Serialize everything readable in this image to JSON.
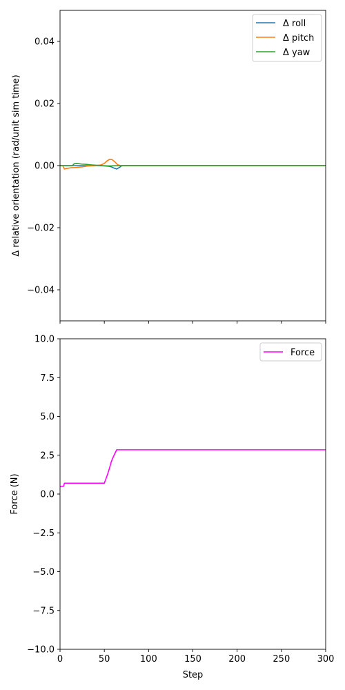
{
  "chart_data": [
    {
      "type": "line",
      "title": "",
      "xlabel": "",
      "ylabel": "Δ relative orientation (rad/unit sim time)",
      "xlim": [
        0,
        300
      ],
      "ylim": [
        -0.05,
        0.05
      ],
      "x_ticks": [
        0,
        50,
        100,
        150,
        200,
        250,
        300
      ],
      "x_tick_labels_visible": false,
      "y_ticks": [
        -0.04,
        -0.02,
        0.0,
        0.02,
        0.04
      ],
      "y_tick_labels": [
        "−0.04",
        "−0.02",
        "0.00",
        "0.02",
        "0.04"
      ],
      "grid": false,
      "legend_position": "top-right",
      "series": [
        {
          "name": "Δ roll",
          "color": "#1f77b4",
          "points": [
            [
              0,
              0
            ],
            [
              45,
              0
            ],
            [
              50,
              -0.0001
            ],
            [
              55,
              -0.0002
            ],
            [
              58,
              -0.0004
            ],
            [
              61,
              -0.0008
            ],
            [
              64,
              -0.0011
            ],
            [
              67,
              -0.0006
            ],
            [
              70,
              0
            ],
            [
              300,
              0
            ]
          ]
        },
        {
          "name": "Δ pitch",
          "color": "#ff7f0e",
          "points": [
            [
              0,
              0
            ],
            [
              3,
              0
            ],
            [
              5,
              -0.0011
            ],
            [
              8,
              -0.0009
            ],
            [
              12,
              -0.0007
            ],
            [
              18,
              -0.0006
            ],
            [
              25,
              -0.0004
            ],
            [
              32,
              -0.0001
            ],
            [
              40,
              0
            ],
            [
              46,
              0.0002
            ],
            [
              50,
              0.0007
            ],
            [
              53,
              0.0015
            ],
            [
              56,
              0.002
            ],
            [
              59,
              0.0019
            ],
            [
              62,
              0.0012
            ],
            [
              65,
              0.0003
            ],
            [
              68,
              0
            ],
            [
              300,
              0
            ]
          ]
        },
        {
          "name": "Δ yaw",
          "color": "#2ca02c",
          "points": [
            [
              0,
              0
            ],
            [
              14,
              0
            ],
            [
              16,
              0.0006
            ],
            [
              19,
              0.0007
            ],
            [
              24,
              0.0005
            ],
            [
              30,
              0.0004
            ],
            [
              36,
              0.0002
            ],
            [
              42,
              0.0001
            ],
            [
              48,
              0
            ],
            [
              54,
              -0.0001
            ],
            [
              58,
              -0.0001
            ],
            [
              62,
              0
            ],
            [
              300,
              0
            ]
          ]
        }
      ]
    },
    {
      "type": "line",
      "title": "",
      "xlabel": "Step",
      "ylabel": "Force (N)",
      "xlim": [
        0,
        300
      ],
      "ylim": [
        -10,
        10
      ],
      "x_ticks": [
        0,
        50,
        100,
        150,
        200,
        250,
        300
      ],
      "x_tick_labels": [
        "0",
        "50",
        "100",
        "150",
        "200",
        "250",
        "300"
      ],
      "y_ticks": [
        -10,
        -7.5,
        -5,
        -2.5,
        0,
        2.5,
        5,
        7.5,
        10
      ],
      "y_tick_labels": [
        "−10.0",
        "−7.5",
        "−5.0",
        "−2.5",
        "0.0",
        "2.5",
        "5.0",
        "7.5",
        "10.0"
      ],
      "grid": false,
      "legend_position": "top-right",
      "series": [
        {
          "name": "Force",
          "color": "#ff00ff",
          "points": [
            [
              0,
              0.5
            ],
            [
              4,
              0.5
            ],
            [
              5,
              0.7
            ],
            [
              50,
              0.7
            ],
            [
              52,
              1.0
            ],
            [
              55,
              1.5
            ],
            [
              58,
              2.1
            ],
            [
              61,
              2.5
            ],
            [
              64,
              2.85
            ],
            [
              300,
              2.85
            ]
          ]
        }
      ]
    }
  ]
}
